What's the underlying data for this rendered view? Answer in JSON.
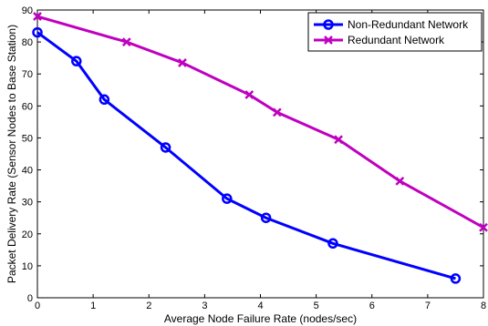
{
  "chart_data": {
    "type": "line",
    "xlabel": "Average Node Failure Rate (nodes/sec)",
    "ylabel": "Packet Delivery Rate (Sensor Nodes to Base Station)",
    "xlim": [
      0,
      8
    ],
    "ylim": [
      0,
      90
    ],
    "xticks": [
      0,
      1,
      2,
      3,
      4,
      5,
      6,
      7,
      8
    ],
    "yticks": [
      0,
      10,
      20,
      30,
      40,
      50,
      60,
      70,
      80,
      90
    ],
    "grid": false,
    "legend_position": "top-right",
    "series": [
      {
        "name": "Non-Redundant Network",
        "color": "#0000ff",
        "marker": "circle",
        "x": [
          0,
          0.7,
          1.2,
          2.3,
          3.4,
          4.1,
          5.3,
          7.5
        ],
        "y": [
          83,
          74,
          62,
          47,
          31,
          25,
          17,
          6
        ]
      },
      {
        "name": "Redundant Network",
        "color": "#bf00bf",
        "marker": "x",
        "x": [
          0,
          1.6,
          2.6,
          3.8,
          4.3,
          5.4,
          6.5,
          8
        ],
        "y": [
          88,
          80,
          73.5,
          63.5,
          58,
          49.5,
          36.5,
          22
        ]
      }
    ]
  }
}
